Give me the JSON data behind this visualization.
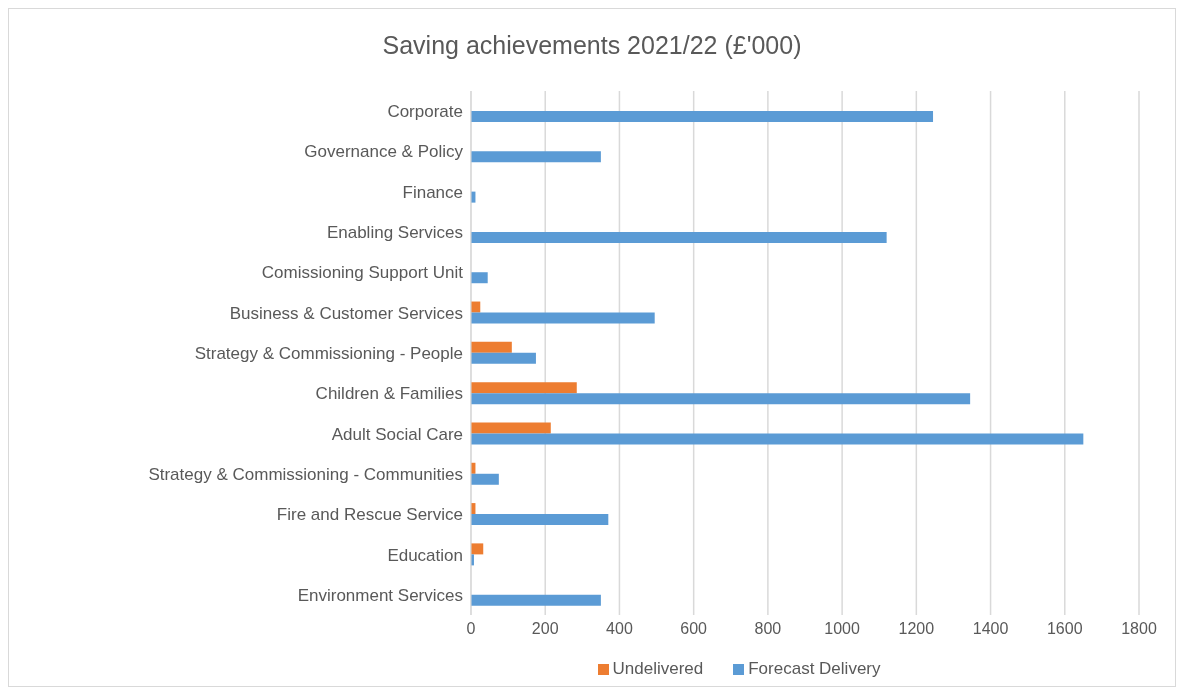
{
  "chart_data": {
    "type": "bar",
    "orientation": "horizontal",
    "title": "Saving achievements 2021/22 (£'000)",
    "categories": [
      "Corporate",
      "Governance & Policy",
      "Finance",
      "Enabling Services",
      "Comissioning Support Unit",
      "Business & Customer Services",
      "Strategy & Commissioning - People",
      "Children & Families",
      "Adult Social Care",
      "Strategy & Commissioning - Communities",
      "Fire and Rescue Service",
      "Education",
      "Environment Services"
    ],
    "series": [
      {
        "name": "Undelivered",
        "color": "#ed7d31",
        "values": [
          0,
          0,
          0,
          0,
          0,
          25,
          110,
          285,
          215,
          12,
          12,
          33,
          0
        ]
      },
      {
        "name": "Forecast Delivery",
        "color": "#5b9bd5",
        "values": [
          1245,
          350,
          12,
          1120,
          45,
          495,
          175,
          1345,
          1650,
          75,
          370,
          8,
          350
        ]
      }
    ],
    "xlim": [
      0,
      1800
    ],
    "xticks": [
      0,
      200,
      400,
      600,
      800,
      1000,
      1200,
      1400,
      1600,
      1800
    ],
    "grid": "x",
    "legend": "bottom"
  }
}
